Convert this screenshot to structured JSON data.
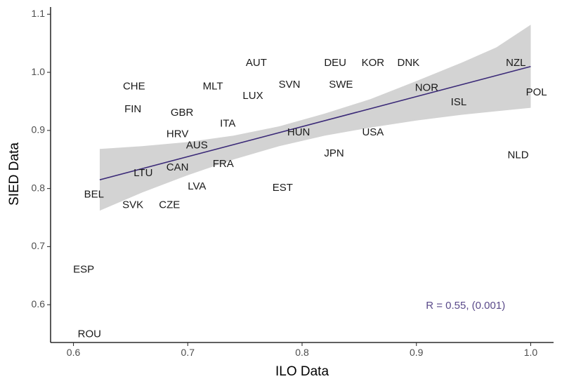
{
  "chart_data": {
    "type": "scatter",
    "xlabel": "ILO Data",
    "ylabel": "SIED Data",
    "xlim": [
      0.58,
      1.02
    ],
    "ylim": [
      0.535,
      1.11
    ],
    "x_ticks": [
      0.6,
      0.7,
      0.8,
      0.9,
      1.0
    ],
    "x_tick_labels": [
      "0.6",
      "0.7",
      "0.8",
      "0.9",
      "1.0"
    ],
    "y_ticks": [
      0.6,
      0.7,
      0.8,
      0.9,
      1.0,
      1.1
    ],
    "y_tick_labels": [
      "0.6",
      "0.7",
      "0.8",
      "0.9",
      "1.0",
      "1.1"
    ],
    "grid": false,
    "points": [
      {
        "label": "AUT",
        "x": 0.76,
        "y": 1.016
      },
      {
        "label": "DEU",
        "x": 0.829,
        "y": 1.016
      },
      {
        "label": "KOR",
        "x": 0.862,
        "y": 1.016
      },
      {
        "label": "DNK",
        "x": 0.893,
        "y": 1.016
      },
      {
        "label": "NZL",
        "x": 0.987,
        "y": 1.016
      },
      {
        "label": "CHE",
        "x": 0.653,
        "y": 0.975
      },
      {
        "label": "MLT",
        "x": 0.722,
        "y": 0.975
      },
      {
        "label": "SVN",
        "x": 0.789,
        "y": 0.978
      },
      {
        "label": "SWE",
        "x": 0.834,
        "y": 0.978
      },
      {
        "label": "NOR",
        "x": 0.909,
        "y": 0.973
      },
      {
        "label": "POL",
        "x": 1.005,
        "y": 0.965
      },
      {
        "label": "LUX",
        "x": 0.757,
        "y": 0.959
      },
      {
        "label": "ISL",
        "x": 0.937,
        "y": 0.948
      },
      {
        "label": "FIN",
        "x": 0.652,
        "y": 0.936
      },
      {
        "label": "GBR",
        "x": 0.695,
        "y": 0.93
      },
      {
        "label": "ITA",
        "x": 0.735,
        "y": 0.911
      },
      {
        "label": "HRV",
        "x": 0.691,
        "y": 0.893
      },
      {
        "label": "HUN",
        "x": 0.797,
        "y": 0.896
      },
      {
        "label": "USA",
        "x": 0.862,
        "y": 0.896
      },
      {
        "label": "AUS",
        "x": 0.708,
        "y": 0.874
      },
      {
        "label": "JPN",
        "x": 0.828,
        "y": 0.86
      },
      {
        "label": "NLD",
        "x": 0.989,
        "y": 0.857
      },
      {
        "label": "FRA",
        "x": 0.731,
        "y": 0.842
      },
      {
        "label": "CAN",
        "x": 0.691,
        "y": 0.836
      },
      {
        "label": "LTU",
        "x": 0.661,
        "y": 0.826
      },
      {
        "label": "LVA",
        "x": 0.708,
        "y": 0.803
      },
      {
        "label": "EST",
        "x": 0.783,
        "y": 0.801
      },
      {
        "label": "BEL",
        "x": 0.618,
        "y": 0.789
      },
      {
        "label": "SVK",
        "x": 0.652,
        "y": 0.771
      },
      {
        "label": "CZE",
        "x": 0.684,
        "y": 0.771
      },
      {
        "label": "ESP",
        "x": 0.609,
        "y": 0.66
      },
      {
        "label": "ROU",
        "x": 0.614,
        "y": 0.549
      }
    ],
    "fit_line": {
      "method": "linear",
      "x": [
        0.623,
        1.0
      ],
      "y": [
        0.815,
        1.01
      ],
      "color": "#3b2a78",
      "confidence_band": {
        "color": "#d3d3d3",
        "x": [
          0.623,
          0.66,
          0.7,
          0.74,
          0.78,
          0.82,
          0.86,
          0.9,
          0.94,
          0.97,
          1.0
        ],
        "lower": [
          0.762,
          0.793,
          0.823,
          0.85,
          0.873,
          0.891,
          0.905,
          0.917,
          0.927,
          0.933,
          0.939
        ],
        "upper": [
          0.868,
          0.873,
          0.88,
          0.891,
          0.907,
          0.929,
          0.954,
          0.985,
          1.017,
          1.043,
          1.082
        ]
      }
    },
    "annotation": {
      "text": "R = 0.55, (0.001)",
      "x": 0.943,
      "y": 0.598,
      "color": "#5a4a8a"
    }
  }
}
